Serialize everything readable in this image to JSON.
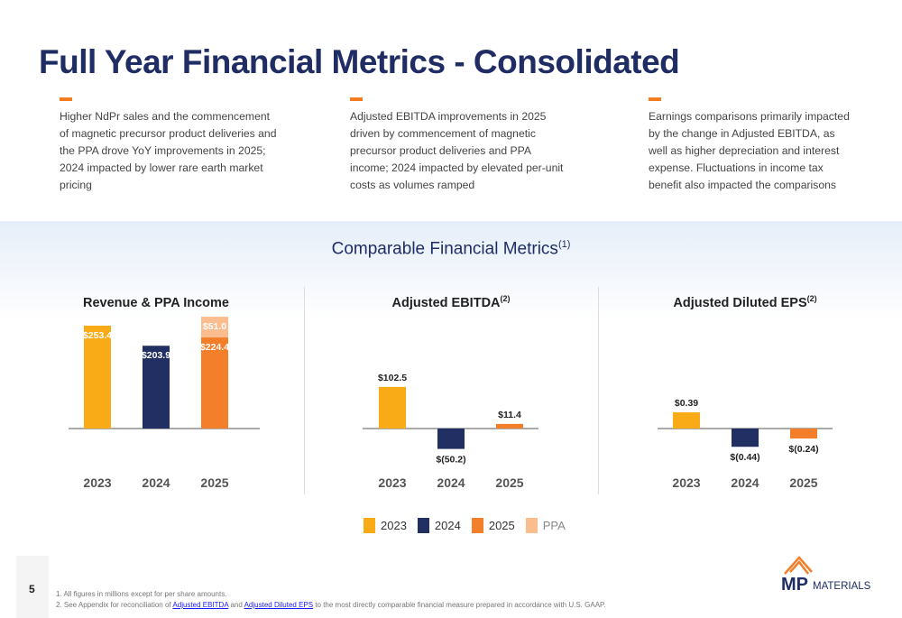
{
  "title": "Full Year Financial Metrics - Consolidated",
  "bullets": [
    "Higher NdPr sales and the commencement of magnetic precursor product deliveries and the PPA drove YoY improvements in 2025; 2024 impacted by lower rare earth market pricing",
    "Adjusted EBITDA improvements in 2025 driven by commencement of magnetic precursor product deliveries and PPA income; 2024 impacted by elevated per-unit costs as volumes ramped",
    "Earnings comparisons primarily impacted by the change in Adjusted EBITDA, as well as higher depreciation and interest expense. Fluctuations in income tax benefit also impacted the comparisons"
  ],
  "section_title": "Comparable Financial Metrics",
  "section_title_sup": "(1)",
  "colors": {
    "2023": "#f9ab17",
    "2024": "#222f63",
    "2025": "#f47f2a",
    "PPA": "#fbbd8d",
    "title": "#1f2d64"
  },
  "chart_data": [
    {
      "type": "bar",
      "title": "Revenue & PPA Income",
      "title_sup": "",
      "categories": [
        "2023",
        "2024",
        "2025"
      ],
      "series": [
        {
          "name": "Revenue",
          "values": [
            253.4,
            203.9,
            224.4
          ],
          "labels": [
            "$253.4",
            "$203.9",
            "$224.4"
          ]
        },
        {
          "name": "PPA",
          "values": [
            0,
            0,
            51.0
          ],
          "labels": [
            "",
            "",
            "$51.0"
          ]
        }
      ],
      "stacked": true
    },
    {
      "type": "bar",
      "title": "Adjusted EBITDA",
      "title_sup": "(2)",
      "categories": [
        "2023",
        "2024",
        "2025"
      ],
      "series": [
        {
          "values": [
            102.5,
            -50.2,
            11.4
          ],
          "labels": [
            "$102.5",
            "$(50.2)",
            "$11.4"
          ]
        }
      ]
    },
    {
      "type": "bar",
      "title": "Adjusted Diluted EPS",
      "title_sup": "(2)",
      "categories": [
        "2023",
        "2024",
        "2025"
      ],
      "series": [
        {
          "values": [
            0.39,
            -0.44,
            -0.24
          ],
          "labels": [
            "$0.39",
            "$(0.44)",
            "$(0.24)"
          ]
        }
      ]
    }
  ],
  "legend": [
    {
      "label": "2023",
      "color": "#f9ab17"
    },
    {
      "label": "2024",
      "color": "#222f63"
    },
    {
      "label": "2025",
      "color": "#f47f2a"
    },
    {
      "label": "PPA",
      "color": "#fbbd8d"
    }
  ],
  "page_number": "5",
  "footnotes": {
    "f1": "1. All figures in millions except for per share amounts.",
    "f2_pre": "2. See Appendix for reconciliation of ",
    "f2_link1": "Adjusted EBITDA",
    "f2_mid": " and ",
    "f2_link2": "Adjusted Diluted EPS",
    "f2_post": " to the most directly comparable financial measure prepared in accordance with U.S. GAAP."
  },
  "logo": {
    "text_mp": "MP",
    "text_materials": "MATERIALS"
  }
}
